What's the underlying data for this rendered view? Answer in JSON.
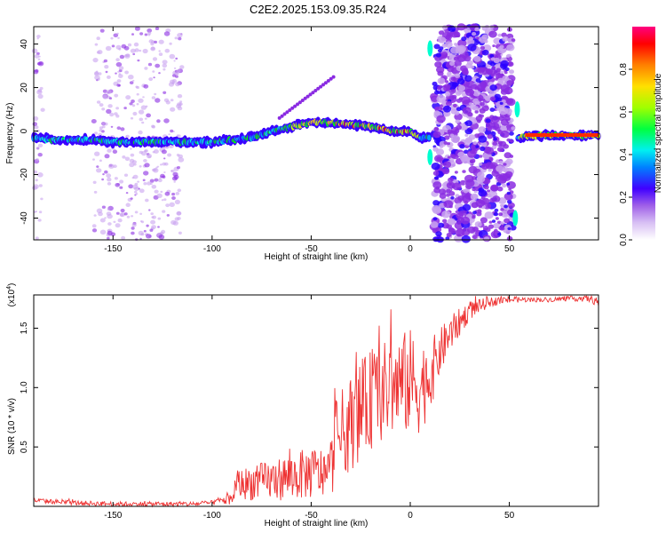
{
  "title": "C2E2.2025.153.09.35.R24",
  "chart_data": [
    {
      "type": "heatmap",
      "title": "C2E2.2025.153.09.35.R24",
      "xlabel": "Height of straight line (km)",
      "ylabel": "Frequency (Hz)",
      "xlim": [
        -190,
        95
      ],
      "ylim": [
        -50,
        48
      ],
      "xticks": [
        -150,
        -100,
        -50,
        0,
        50
      ],
      "yticks": [
        -40,
        -20,
        0,
        20,
        40
      ],
      "colorbar": {
        "label": "Normalized spectral amplitude",
        "range": [
          0.0,
          1.0
        ],
        "ticks": [
          0.0,
          0.2,
          0.4,
          0.6,
          0.8
        ],
        "colors": [
          "#ffffff",
          "#c9a3f0",
          "#8a2be2",
          "#2a00ff",
          "#00a0ff",
          "#00ffd0",
          "#00ff00",
          "#c8ff00",
          "#ffe000",
          "#ff7000",
          "#ff0000",
          "#ff0090"
        ]
      },
      "ridge": {
        "x": [
          -190,
          -180,
          -170,
          -160,
          -150,
          -140,
          -130,
          -120,
          -110,
          -100,
          -90,
          -80,
          -70,
          -60,
          -50,
          -40,
          -30,
          -20,
          -10,
          0,
          5,
          55,
          60,
          70,
          80,
          95
        ],
        "freq": [
          -3,
          -4,
          -4,
          -4,
          -5,
          -5,
          -5,
          -5,
          -5,
          -5,
          -4,
          -3,
          0,
          2,
          4,
          4,
          3,
          2,
          0,
          0,
          -3,
          -3,
          -2,
          -2,
          -2,
          -2
        ]
      },
      "noise_bands": [
        [
          -190,
          -185
        ],
        [
          -160,
          -115
        ],
        [
          12,
          52
        ]
      ]
    },
    {
      "type": "line",
      "xlabel": "Height of straight line (km)",
      "ylabel": "SNR (10 * v/v)",
      "scale_label": "(x10",
      "scale_exp": "4",
      "scale_suffix": ")",
      "xlim": [
        -190,
        95
      ],
      "ylim": [
        0,
        1.78
      ],
      "xticks": [
        -150,
        -100,
        -50,
        0,
        50
      ],
      "yticks": [
        0.5,
        1.0,
        1.5
      ],
      "ytick_labels": [
        "0.5",
        "1.0",
        "1.5"
      ],
      "series": [
        {
          "color": "#ee3333",
          "x": [
            -190,
            -170,
            -150,
            -130,
            -110,
            -100,
            -95,
            -90,
            -88,
            -80,
            -70,
            -60,
            -50,
            -40,
            -38,
            -30,
            -20,
            -10,
            0,
            5,
            10,
            15,
            20,
            25,
            30,
            40,
            50,
            60,
            70,
            80,
            90,
            95
          ],
          "y": [
            0.05,
            0.03,
            0.02,
            0.02,
            0.02,
            0.03,
            0.05,
            0.06,
            0.18,
            0.2,
            0.22,
            0.25,
            0.28,
            0.28,
            0.55,
            0.7,
            0.9,
            1.0,
            1.05,
            1.0,
            1.1,
            1.3,
            1.45,
            1.55,
            1.65,
            1.72,
            1.74,
            1.74,
            1.74,
            1.75,
            1.75,
            1.72
          ],
          "spread": [
            0.02,
            0.02,
            0.02,
            0.02,
            0.02,
            0.02,
            0.04,
            0.05,
            0.12,
            0.15,
            0.17,
            0.2,
            0.22,
            0.22,
            0.35,
            0.4,
            0.42,
            0.42,
            0.45,
            0.4,
            0.3,
            0.2,
            0.15,
            0.12,
            0.08,
            0.04,
            0.03,
            0.02,
            0.02,
            0.02,
            0.03,
            0.04
          ]
        }
      ]
    }
  ]
}
